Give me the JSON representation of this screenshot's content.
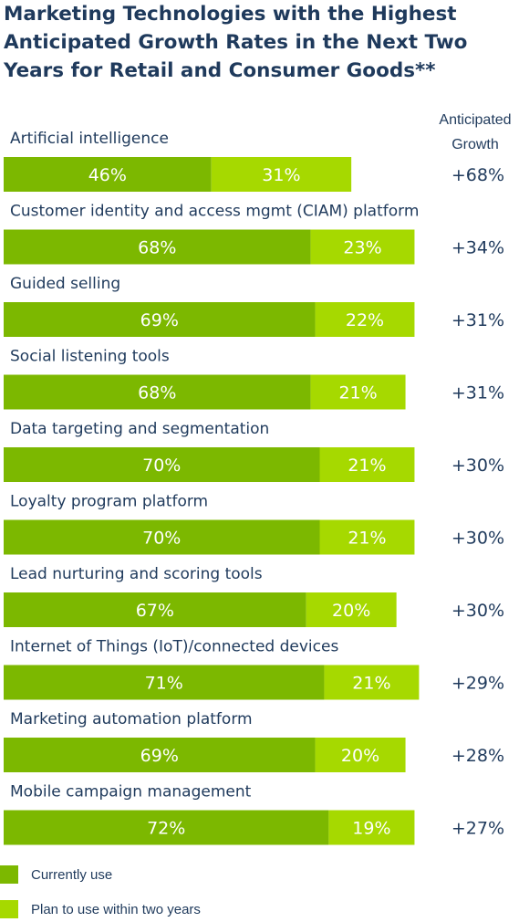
{
  "title": "Marketing Technologies with the Highest Anticipated Growth Rates in the Next Two Years for Retail and Consumer Goods**",
  "growth_header": "Anticipated Growth",
  "colors": {
    "current": "#7cb800",
    "plan": "#a6d900"
  },
  "legend": [
    {
      "label": "Currently use",
      "color": "#7cb800"
    },
    {
      "label": "Plan to use within two years",
      "color": "#a6d900"
    }
  ],
  "chart_data": {
    "type": "bar",
    "orientation": "horizontal",
    "stacked": true,
    "title": "Marketing Technologies with the Highest Anticipated Growth Rates in the Next Two Years for Retail and Consumer Goods**",
    "categories": [
      "Artificial intelligence",
      "Customer identity and access mgmt (CIAM) platform",
      "Guided selling",
      "Social listening tools",
      "Data targeting and segmentation",
      "Loyalty program platform",
      "Lead nurturing and scoring tools",
      "Internet of Things (IoT)/connected devices",
      "Marketing automation platform",
      "Mobile campaign management"
    ],
    "series": [
      {
        "name": "Currently use",
        "values": [
          46,
          68,
          69,
          68,
          70,
          70,
          67,
          71,
          69,
          72
        ]
      },
      {
        "name": "Plan to use within two years",
        "values": [
          31,
          23,
          22,
          21,
          21,
          21,
          20,
          21,
          20,
          19
        ]
      }
    ],
    "anticipated_growth": [
      "+68%",
      "+34%",
      "+31%",
      "+31%",
      "+30%",
      "+30%",
      "+30%",
      "+29%",
      "+28%",
      "+27%"
    ],
    "value_suffix": "%",
    "legend_position": "bottom-left",
    "grid": false
  }
}
